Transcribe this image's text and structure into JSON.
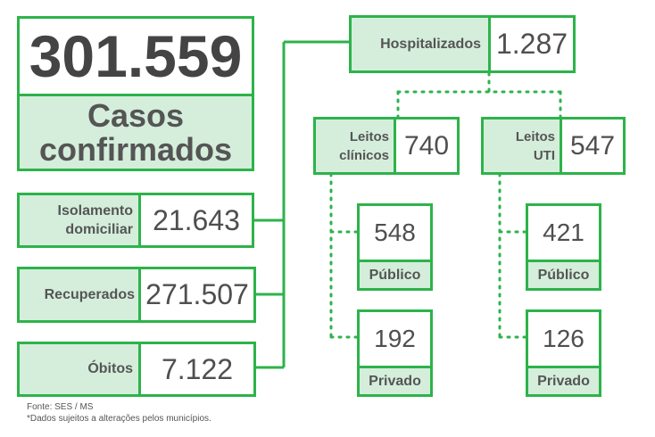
{
  "main": {
    "casos_value": "301.559",
    "casos_label": "Casos confirmados"
  },
  "left": {
    "isolamento_label": "Isolamento domiciliar",
    "isolamento_value": "21.643",
    "recuperados_label": "Recuperados",
    "recuperados_value": "271.507",
    "obitos_label": "Óbitos",
    "obitos_value": "7.122"
  },
  "hosp": {
    "label": "Hospitalizados",
    "value": "1.287"
  },
  "clinicos": {
    "label": "Leitos clínicos",
    "value": "740",
    "publico_value": "548",
    "publico_label": "Público",
    "privado_value": "192",
    "privado_label": "Privado"
  },
  "uti": {
    "label": "Leitos UTI",
    "value": "547",
    "publico_value": "421",
    "publico_label": "Público",
    "privado_value": "126",
    "privado_label": "Privado"
  },
  "footer": {
    "source": "Fonte: SES / MS",
    "note": "*Dados sujeitos a alterações pelos municípios."
  },
  "colors": {
    "border_green": "#2db34a",
    "fill_green": "#d4eedb",
    "text_gray": "#4f4f4f"
  }
}
